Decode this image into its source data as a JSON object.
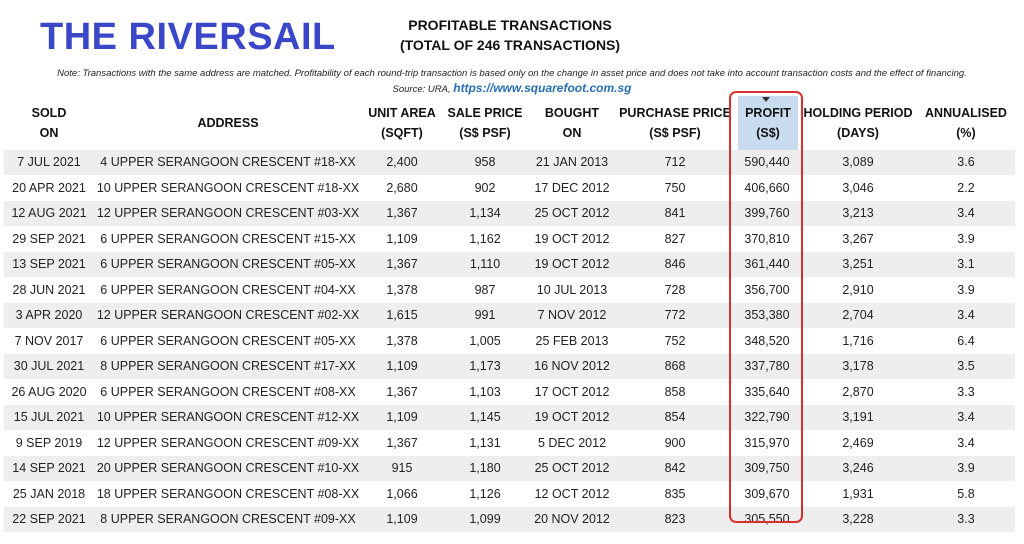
{
  "brand": "THE RIVERSAIL",
  "report": {
    "title_line1": "PROFITABLE TRANSACTIONS",
    "title_line2": "(TOTAL OF 246 TRANSACTIONS)"
  },
  "note": "Note: Transactions with the same address are matched. Profitability of each round-trip transaction is based only on the change in asset price and does not take into account transaction costs and the effect of financing.",
  "source": {
    "prefix": "Source: URA,",
    "link": "https://www.squarefoot.com.sg"
  },
  "columns": [
    {
      "line1": "SOLD",
      "line2": "ON"
    },
    {
      "line1": "ADDRESS",
      "line2": ""
    },
    {
      "line1": "UNIT AREA",
      "line2": "(SQFT)"
    },
    {
      "line1": "SALE PRICE",
      "line2": "(S$ PSF)"
    },
    {
      "line1": "BOUGHT",
      "line2": "ON"
    },
    {
      "line1": "PURCHASE PRICE",
      "line2": "(S$ PSF)"
    },
    {
      "line1": "PROFIT",
      "line2": "(S$)"
    },
    {
      "line1": "HOLDING PERIOD",
      "line2": "(DAYS)"
    },
    {
      "line1": "ANNUALISED",
      "line2": "(%)"
    }
  ],
  "sort": {
    "column": "PROFIT",
    "direction": "descending"
  },
  "rows": [
    [
      "7 JUL 2021",
      "4 UPPER SERANGOON CRESCENT #18-XX",
      "2,400",
      "958",
      "21 JAN 2013",
      "712",
      "590,440",
      "3,089",
      "3.6"
    ],
    [
      "20 APR 2021",
      "10 UPPER SERANGOON CRESCENT #18-XX",
      "2,680",
      "902",
      "17 DEC 2012",
      "750",
      "406,660",
      "3,046",
      "2.2"
    ],
    [
      "12 AUG 2021",
      "12 UPPER SERANGOON CRESCENT #03-XX",
      "1,367",
      "1,134",
      "25 OCT 2012",
      "841",
      "399,760",
      "3,213",
      "3.4"
    ],
    [
      "29 SEP 2021",
      "6 UPPER SERANGOON CRESCENT #15-XX",
      "1,109",
      "1,162",
      "19 OCT 2012",
      "827",
      "370,810",
      "3,267",
      "3.9"
    ],
    [
      "13 SEP 2021",
      "6 UPPER SERANGOON CRESCENT #05-XX",
      "1,367",
      "1,110",
      "19 OCT 2012",
      "846",
      "361,440",
      "3,251",
      "3.1"
    ],
    [
      "28 JUN 2021",
      "6 UPPER SERANGOON CRESCENT #04-XX",
      "1,378",
      "987",
      "10 JUL 2013",
      "728",
      "356,700",
      "2,910",
      "3.9"
    ],
    [
      "3 APR 2020",
      "12 UPPER SERANGOON CRESCENT #02-XX",
      "1,615",
      "991",
      "7 NOV 2012",
      "772",
      "353,380",
      "2,704",
      "3.4"
    ],
    [
      "7 NOV 2017",
      "6 UPPER SERANGOON CRESCENT #05-XX",
      "1,378",
      "1,005",
      "25 FEB 2013",
      "752",
      "348,520",
      "1,716",
      "6.4"
    ],
    [
      "30 JUL 2021",
      "8 UPPER SERANGOON CRESCENT #17-XX",
      "1,109",
      "1,173",
      "16 NOV 2012",
      "868",
      "337,780",
      "3,178",
      "3.5"
    ],
    [
      "26 AUG 2020",
      "6 UPPER SERANGOON CRESCENT #08-XX",
      "1,367",
      "1,103",
      "17 OCT 2012",
      "858",
      "335,640",
      "2,870",
      "3.3"
    ],
    [
      "15 JUL 2021",
      "10 UPPER SERANGOON CRESCENT #12-XX",
      "1,109",
      "1,145",
      "19 OCT 2012",
      "854",
      "322,790",
      "3,191",
      "3.4"
    ],
    [
      "9 SEP 2019",
      "12 UPPER SERANGOON CRESCENT #09-XX",
      "1,367",
      "1,131",
      "5 DEC 2012",
      "900",
      "315,970",
      "2,469",
      "3.4"
    ],
    [
      "14 SEP 2021",
      "20 UPPER SERANGOON CRESCENT #10-XX",
      "915",
      "1,180",
      "25 OCT 2012",
      "842",
      "309,750",
      "3,246",
      "3.9"
    ],
    [
      "25 JAN 2018",
      "18 UPPER SERANGOON CRESCENT #08-XX",
      "1,066",
      "1,126",
      "12 OCT 2012",
      "835",
      "309,670",
      "1,931",
      "5.8"
    ],
    [
      "22 SEP 2021",
      "8 UPPER SERANGOON CRESCENT #09-XX",
      "1,109",
      "1,099",
      "20 NOV 2012",
      "823",
      "305,550",
      "3,228",
      "3.3"
    ]
  ],
  "colors": {
    "brand": "#3b47c9",
    "highlight_box": "#d9302c",
    "profit_header_bg": "#c9dcef",
    "stripe": "#eeeeee",
    "link": "#2a6fb3"
  }
}
